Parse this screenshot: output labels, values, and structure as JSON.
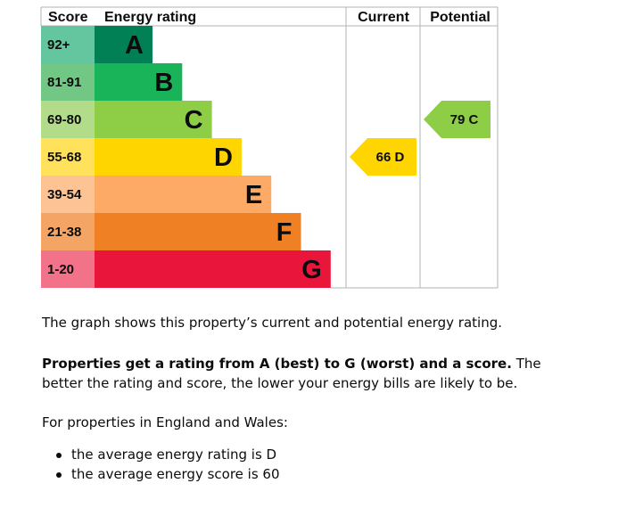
{
  "chart_data": {
    "type": "bar",
    "headers": {
      "score": "Score",
      "rating": "Energy rating",
      "current": "Current",
      "potential": "Potential"
    },
    "bands": [
      {
        "letter": "A",
        "range": "92+",
        "score_min": 92,
        "score_max": 100,
        "color": "#008054",
        "score_bg": "#63c69f"
      },
      {
        "letter": "B",
        "range": "81-91",
        "score_min": 81,
        "score_max": 91,
        "color": "#19b459",
        "score_bg": "#72c784"
      },
      {
        "letter": "C",
        "range": "69-80",
        "score_min": 69,
        "score_max": 80,
        "color": "#8dce46",
        "score_bg": "#b3dc8a"
      },
      {
        "letter": "D",
        "range": "55-68",
        "score_min": 55,
        "score_max": 68,
        "color": "#ffd500",
        "score_bg": "#ffe15c"
      },
      {
        "letter": "E",
        "range": "39-54",
        "score_min": 39,
        "score_max": 54,
        "color": "#fcaa65",
        "score_bg": "#fdc394"
      },
      {
        "letter": "F",
        "range": "21-38",
        "score_min": 21,
        "score_max": 38,
        "color": "#ef8023",
        "score_bg": "#f4a565"
      },
      {
        "letter": "G",
        "range": "1-20",
        "score_min": 1,
        "score_max": 20,
        "color": "#e9153b",
        "score_bg": "#f2728a"
      }
    ],
    "current": {
      "score": 66,
      "letter": "D",
      "label": "66  D",
      "color": "#ffd500"
    },
    "potential": {
      "score": 79,
      "letter": "C",
      "label": "79  C",
      "color": "#8dce46"
    }
  },
  "text": {
    "intro": "The graph shows this property’s current and potential energy rating.",
    "rating_bold": "Properties get a rating from A (best) to G (worst) and a score.",
    "rating_rest": " The better the rating and score, the lower your energy bills are likely to be.",
    "region_heading": "For properties in England and Wales:",
    "averages": [
      "the average energy rating is D",
      "the average energy score is 60"
    ]
  }
}
